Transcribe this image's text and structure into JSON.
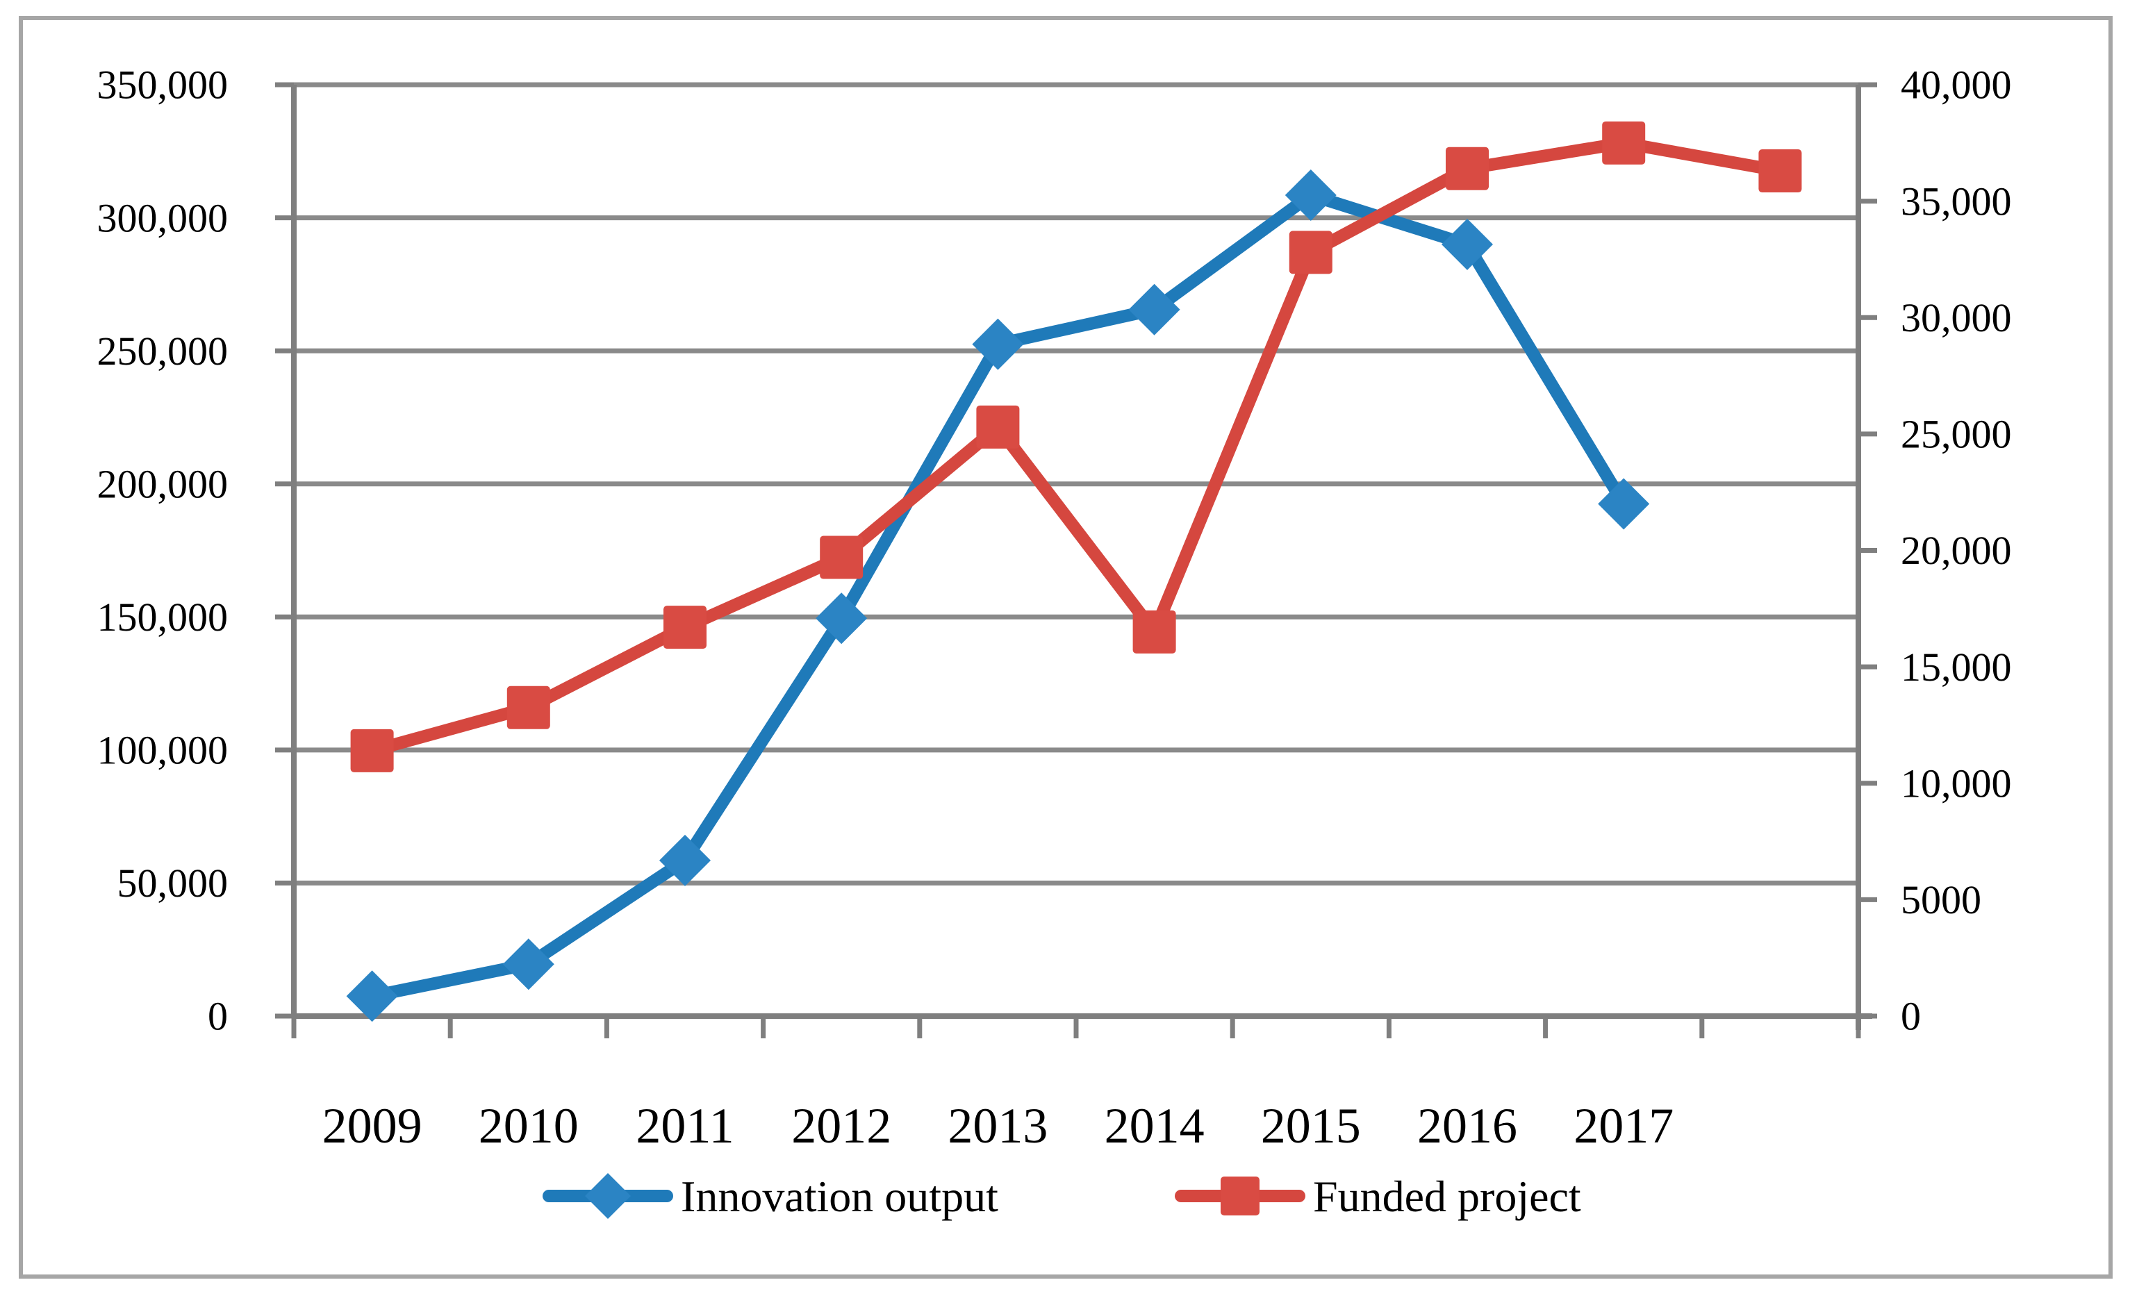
{
  "chart_data": {
    "type": "line",
    "title": "",
    "dual_axis": true,
    "grid": "horizontal",
    "categories": [
      "2009",
      "2010",
      "2011",
      "2012",
      "2013",
      "2014",
      "2015",
      "2016",
      "2017",
      ""
    ],
    "series": [
      {
        "name": "Innovation output",
        "axis": "left",
        "marker": "diamond",
        "color": "#1F7AB9",
        "marker_color": "#2B84C4",
        "values": [
          7500,
          19500,
          58500,
          149500,
          252500,
          265500,
          308500,
          290000,
          192500
        ]
      },
      {
        "name": "Funded project",
        "axis": "right",
        "marker": "square",
        "color": "#D5473F",
        "marker_color": "#D94B43",
        "values": [
          11400,
          13250,
          16700,
          19700,
          25300,
          16500,
          32800,
          36400,
          37500,
          36300
        ]
      }
    ],
    "left_axis": {
      "min": 0,
      "max": 350000,
      "step": 50000,
      "labels": [
        "350,000",
        "300,000",
        "250,000",
        "200,000",
        "150,000",
        "100,000",
        "50,000",
        "0"
      ]
    },
    "right_axis": {
      "min": 0,
      "max": 40000,
      "step": 5000,
      "labels": [
        "40,000",
        "35,000",
        "30,000",
        "25,000",
        "20,000",
        "15,000",
        "10,000",
        "5000",
        "0"
      ]
    },
    "legend": {
      "position": "bottom",
      "items": [
        "Innovation output",
        "Funded project"
      ]
    },
    "colors": {
      "gridline": "#8A8A8A",
      "axis": "#7F7F7F",
      "border": "#A6A6A6",
      "text": "#000000"
    }
  }
}
